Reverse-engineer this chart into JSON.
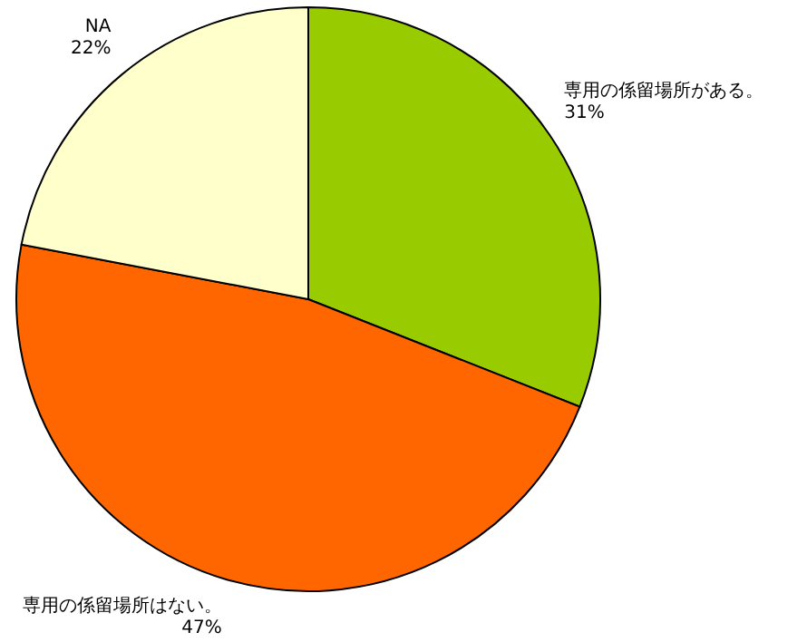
{
  "chart_data": {
    "type": "pie",
    "categories": [
      "専用の係留場所がある。",
      "専用の係留場所はない。",
      "NA"
    ],
    "values": [
      31,
      47,
      22
    ],
    "colors": [
      "#99cc00",
      "#ff6600",
      "#ffffcc"
    ],
    "value_labels": [
      "31%",
      "47%",
      "22%"
    ]
  }
}
